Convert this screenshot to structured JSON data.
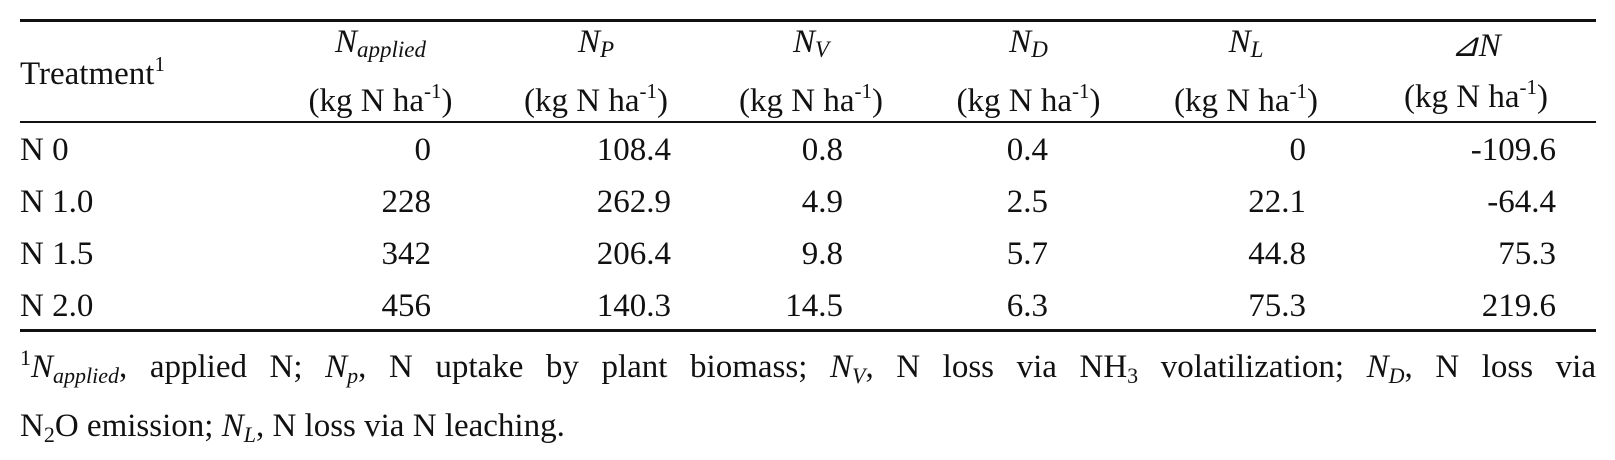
{
  "table": {
    "headers": [
      {
        "label": "Treatment",
        "footnote_mark": "1"
      },
      {
        "symbol": "N",
        "subscript": "applied",
        "unit": "(kg N ha",
        "exp": "-1",
        "unit_end": ")"
      },
      {
        "symbol": "N",
        "subscript": "P",
        "unit": "(kg N ha",
        "exp": "-1",
        "unit_end": ")"
      },
      {
        "symbol": "N",
        "subscript": "V",
        "unit": "(kg N ha",
        "exp": "-1",
        "unit_end": ")"
      },
      {
        "symbol": "N",
        "subscript": "D",
        "unit": "(kg N ha",
        "exp": "-1",
        "unit_end": ")"
      },
      {
        "symbol": "N",
        "subscript": "L",
        "unit": "(kg N ha",
        "exp": "-1",
        "unit_end": ")"
      },
      {
        "symbol": "⊿N",
        "subscript": "",
        "unit": "(kg N ha",
        "exp": "-1",
        "unit_end": ")"
      }
    ],
    "rows": [
      [
        "N 0",
        "0",
        "108.4",
        "0.8",
        "0.4",
        "0",
        "-109.6"
      ],
      [
        "N 1.0",
        "228",
        "262.9",
        "4.9",
        "2.5",
        "22.1",
        "-64.4"
      ],
      [
        "N 1.5",
        "342",
        "206.4",
        "9.8",
        "5.7",
        "44.8",
        "75.3"
      ],
      [
        "N 2.0",
        "456",
        "140.3",
        "14.5",
        "6.3",
        "75.3",
        "219.6"
      ]
    ]
  },
  "footnote": {
    "mark": "1",
    "napplied_sym": "N",
    "napplied_sub": "applied",
    "napplied_text": ", applied N; ",
    "np_sym": "N",
    "np_sub": "p",
    "np_text": ", N uptake by plant biomass; ",
    "nv_sym": "N",
    "nv_sub": "V",
    "nv_text_a": ", N loss via NH",
    "nh3_sub": "3",
    "nv_text_b": " volatilization; ",
    "nd_sym": "N",
    "nd_sub": "D",
    "nd_text": ", N loss via",
    "n2o_a": "N",
    "n2o_sub": "2",
    "n2o_b": "O emission; ",
    "nl_sym": "N",
    "nl_sub": "L",
    "nl_text": ", N loss via N leaching."
  }
}
